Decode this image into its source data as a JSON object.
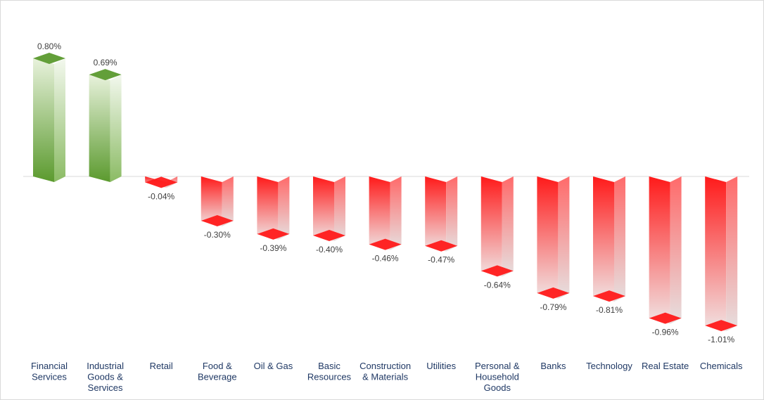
{
  "chart_data": {
    "type": "bar",
    "title": "",
    "xlabel": "",
    "ylabel": "",
    "categories": [
      [
        "Financial",
        "Services"
      ],
      [
        "Industrial",
        "Goods &",
        "Services"
      ],
      [
        "Retail"
      ],
      [
        "Food &",
        "Beverage"
      ],
      [
        "Oil & Gas"
      ],
      [
        "Basic",
        "Resources"
      ],
      [
        "Construction",
        "& Materials"
      ],
      [
        "Utilities"
      ],
      [
        "Personal &",
        "Household",
        "Goods"
      ],
      [
        "Banks"
      ],
      [
        "Technology"
      ],
      [
        "Real Estate"
      ],
      [
        "Chemicals"
      ]
    ],
    "values": [
      0.8,
      0.69,
      -0.04,
      -0.3,
      -0.39,
      -0.4,
      -0.46,
      -0.47,
      -0.64,
      -0.79,
      -0.81,
      -0.96,
      -1.01
    ],
    "value_labels": [
      "0.80%",
      "0.69%",
      "-0.04%",
      "-0.30%",
      "-0.39%",
      "-0.40%",
      "-0.46%",
      "-0.47%",
      "-0.64%",
      "-0.79%",
      "-0.81%",
      "-0.96%",
      "-1.01%"
    ],
    "ylim": [
      -1.01,
      0.8
    ],
    "grid": false,
    "legend": "none",
    "colors": {
      "positive_dark": "#5b9a2e",
      "positive_light": "#e8f2dc",
      "negative_dark": "#ff1a1a",
      "negative_light": "#f0e4e4",
      "baseline": "#d9d9d9",
      "category_text": "#1f3864",
      "value_text": "#404040"
    }
  }
}
